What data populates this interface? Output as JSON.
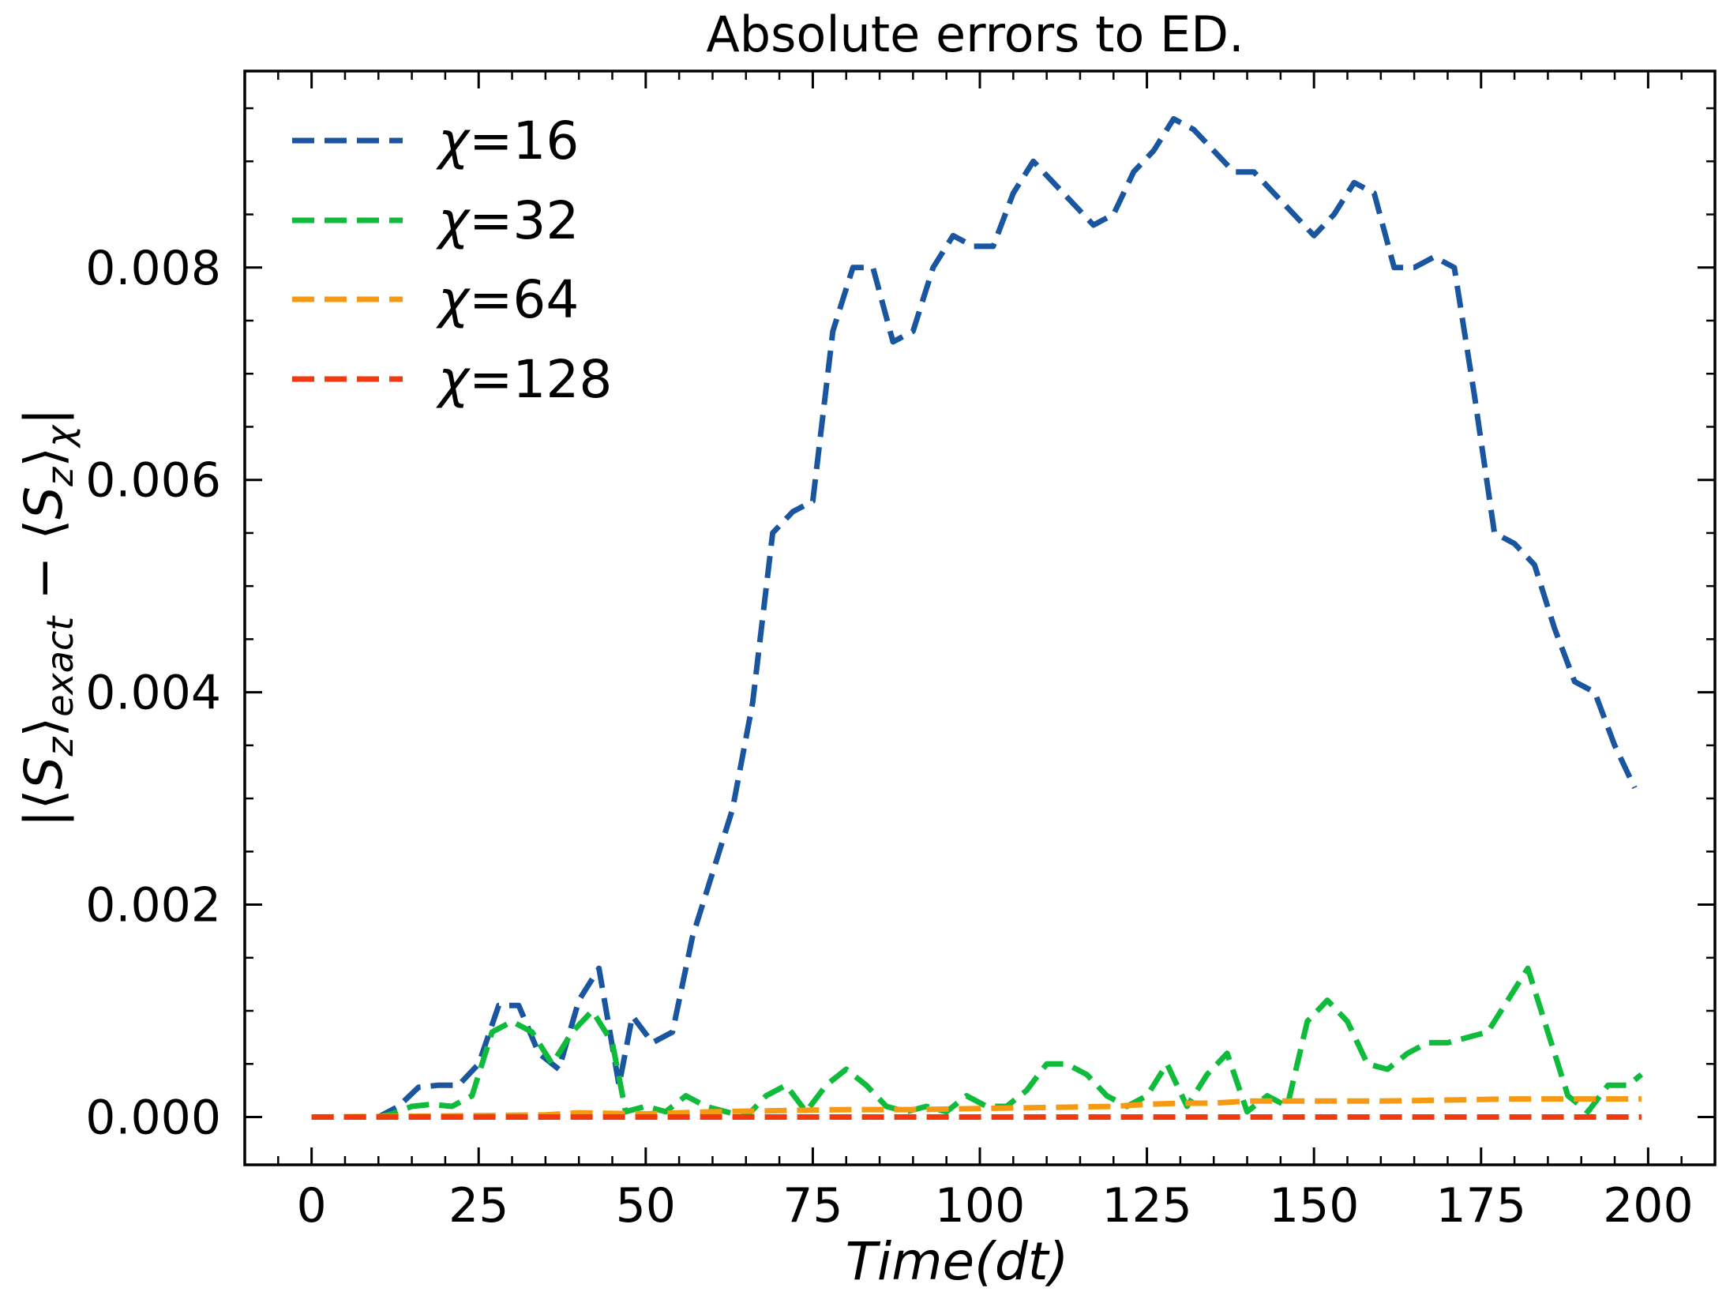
{
  "chart_data": {
    "type": "line",
    "title": "Absolute errors to ED.",
    "xlabel": "Time(dt)",
    "ylabel": "|⟨S_z⟩_exact − ⟨S_z⟩_χ|",
    "xlim": [
      -10,
      210
    ],
    "ylim": [
      -0.00045,
      0.00985
    ],
    "x_ticks": [
      0,
      25,
      50,
      75,
      100,
      125,
      150,
      175,
      200
    ],
    "x_tick_labels": [
      "0",
      "25",
      "50",
      "75",
      "100",
      "125",
      "150",
      "175",
      "200"
    ],
    "y_ticks": [
      0.0,
      0.002,
      0.004,
      0.006,
      0.008
    ],
    "y_tick_labels": [
      "0.000",
      "0.002",
      "0.004",
      "0.006",
      "0.008"
    ],
    "grid": false,
    "legend_position": "top-left",
    "series": [
      {
        "name": "χ=16",
        "color": "#1a56a0",
        "x": [
          0,
          5,
          10,
          13,
          16,
          19,
          22,
          25,
          28,
          31,
          34,
          37,
          40,
          43,
          46,
          48,
          51,
          54,
          57,
          60,
          63,
          66,
          69,
          72,
          75,
          78,
          81,
          84,
          87,
          90,
          93,
          96,
          99,
          102,
          105,
          108,
          111,
          114,
          117,
          120,
          123,
          126,
          129,
          132,
          135,
          138,
          141,
          144,
          147,
          150,
          153,
          156,
          159,
          162,
          165,
          168,
          171,
          174,
          177,
          180,
          183,
          186,
          189,
          192,
          195,
          198
        ],
        "y": [
          0.0,
          0.0,
          0.0,
          0.0001,
          0.00028,
          0.0003,
          0.0003,
          0.0005,
          0.00105,
          0.00105,
          0.0006,
          0.00045,
          0.0011,
          0.0014,
          0.0003,
          0.00095,
          0.0007,
          0.0008,
          0.0017,
          0.0023,
          0.0029,
          0.0039,
          0.0055,
          0.0057,
          0.0058,
          0.0074,
          0.008,
          0.008,
          0.0073,
          0.0074,
          0.008,
          0.0083,
          0.0082,
          0.0082,
          0.0087,
          0.009,
          0.0088,
          0.0086,
          0.0084,
          0.0085,
          0.0089,
          0.0091,
          0.0094,
          0.0093,
          0.0091,
          0.0089,
          0.0089,
          0.0087,
          0.0085,
          0.0083,
          0.0085,
          0.0088,
          0.0087,
          0.008,
          0.008,
          0.0081,
          0.008,
          0.0068,
          0.0055,
          0.0054,
          0.0052,
          0.0046,
          0.0041,
          0.004,
          0.0035,
          0.0031
        ]
      },
      {
        "name": "χ=32",
        "color": "#0ebb3b",
        "x": [
          0,
          5,
          10,
          12,
          15,
          18,
          21,
          24,
          27,
          30,
          33,
          36,
          39,
          42,
          45,
          47,
          50,
          53,
          56,
          59,
          62,
          65,
          68,
          71,
          74,
          77,
          80,
          83,
          86,
          89,
          92,
          95,
          98,
          101,
          104,
          107,
          110,
          113,
          116,
          119,
          122,
          125,
          128,
          131,
          134,
          137,
          140,
          143,
          146,
          149,
          152,
          155,
          158,
          161,
          164,
          167,
          170,
          173,
          176,
          179,
          182,
          185,
          188,
          191,
          194,
          197,
          199
        ],
        "y": [
          0.0,
          0.0,
          0.0,
          3e-05,
          0.0001,
          0.00012,
          0.0001,
          0.0002,
          0.0008,
          0.0009,
          0.0008,
          0.0005,
          0.0008,
          0.001,
          0.0007,
          5e-05,
          0.0001,
          5e-05,
          0.0002,
          0.0001,
          5e-05,
          0.0,
          0.0002,
          0.0003,
          5e-05,
          0.0003,
          0.00045,
          0.0003,
          0.0001,
          5e-05,
          0.0001,
          5e-05,
          0.0002,
          0.0001,
          0.0001,
          0.00025,
          0.0005,
          0.0005,
          0.0004,
          0.0002,
          0.0001,
          0.0002,
          0.0005,
          0.0001,
          0.0004,
          0.0006,
          5e-05,
          0.0002,
          0.0001,
          0.0009,
          0.0011,
          0.0009,
          0.0005,
          0.00045,
          0.0006,
          0.0007,
          0.0007,
          0.00075,
          0.0008,
          0.0011,
          0.0014,
          0.0008,
          0.0002,
          5e-05,
          0.0003,
          0.0003,
          0.0004
        ]
      },
      {
        "name": "χ=64",
        "color": "#f59a12",
        "x": [
          0,
          20,
          35,
          40,
          50,
          60,
          70,
          80,
          90,
          100,
          110,
          120,
          125,
          130,
          135,
          140,
          150,
          160,
          170,
          180,
          190,
          199
        ],
        "y": [
          0.0,
          1e-05,
          2e-05,
          4e-05,
          3e-05,
          5e-05,
          6e-05,
          7e-05,
          7e-05,
          8e-05,
          9e-05,
          0.0001,
          0.00012,
          0.00013,
          0.00013,
          0.00015,
          0.00015,
          0.00015,
          0.00016,
          0.00017,
          0.00017,
          0.00017
        ]
      },
      {
        "name": "χ=128",
        "color": "#f23a10",
        "x": [
          0,
          50,
          100,
          150,
          199
        ],
        "y": [
          0.0,
          0.0,
          0.0,
          0.0,
          0.0
        ]
      }
    ]
  }
}
